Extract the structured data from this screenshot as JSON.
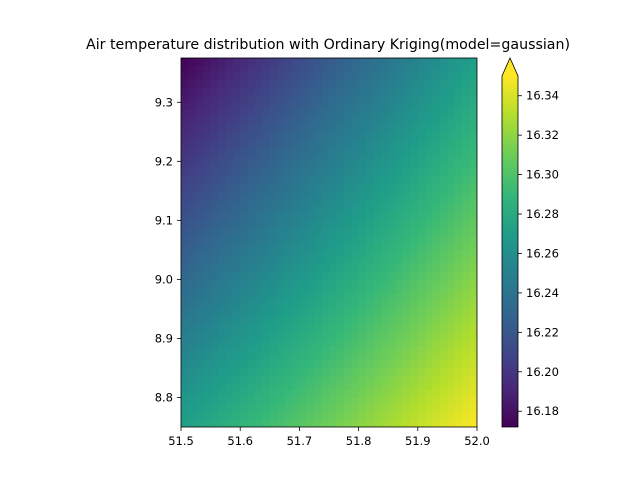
{
  "chart_data": {
    "type": "heatmap",
    "title": "Air temperature distribution with Ordinary Kriging(model=gaussian)",
    "xlabel": "",
    "ylabel": "",
    "xlim": [
      51.5,
      52.0
    ],
    "ylim": [
      8.75,
      9.375
    ],
    "x_ticks": [
      "51.5",
      "51.6",
      "51.7",
      "51.8",
      "51.9",
      "52.0"
    ],
    "y_ticks": [
      "8.8",
      "8.9",
      "9.0",
      "9.1",
      "9.2",
      "9.3"
    ],
    "colormap": "viridis",
    "colorbar": {
      "vmin": 16.172,
      "vmax": 16.35,
      "extend": "max",
      "ticks": [
        "16.18",
        "16.20",
        "16.22",
        "16.24",
        "16.26",
        "16.28",
        "16.30",
        "16.32",
        "16.34"
      ]
    },
    "corner_values": {
      "top_left": 16.172,
      "top_right": 16.272,
      "bottom_left": 16.272,
      "bottom_right": 16.35
    },
    "grid": false,
    "legend": "none"
  }
}
